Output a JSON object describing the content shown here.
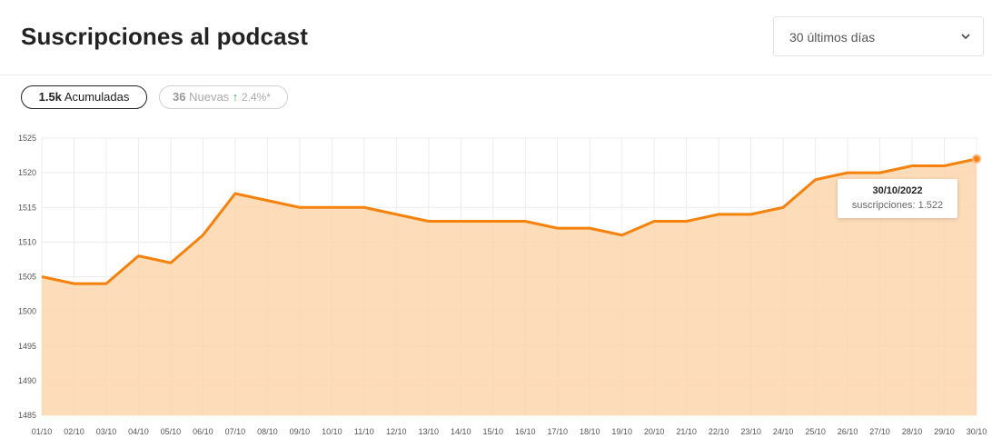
{
  "header": {
    "title": "Suscripciones al podcast",
    "range_select": {
      "value": "30 últimos días",
      "icon": "chevron-down-icon"
    }
  },
  "pills": {
    "acumuladas": {
      "value": "1.5k",
      "label": "Acumuladas"
    },
    "nuevas": {
      "value": "36",
      "label": "Nuevas",
      "change": "2.4%*",
      "trend_icon": "arrow-up-icon"
    }
  },
  "tooltip": {
    "date": "30/10/2022",
    "text": "suscripciones: 1.522"
  },
  "colors": {
    "line": "#f5820d",
    "fill": "#fdd6ad",
    "accent_up": "#3aa96b"
  },
  "chart_data": {
    "type": "area",
    "x": [
      "01/10",
      "02/10",
      "03/10",
      "04/10",
      "05/10",
      "06/10",
      "07/10",
      "08/10",
      "09/10",
      "10/10",
      "11/10",
      "12/10",
      "13/10",
      "14/10",
      "15/10",
      "16/10",
      "17/10",
      "18/10",
      "19/10",
      "20/10",
      "21/10",
      "22/10",
      "23/10",
      "24/10",
      "25/10",
      "26/10",
      "27/10",
      "28/10",
      "29/10",
      "30/10"
    ],
    "series": [
      {
        "values": [
          1505,
          1504,
          1504,
          1508,
          1507,
          1511,
          1517,
          1516,
          1515,
          1515,
          1515,
          1514,
          1513,
          1513,
          1513,
          1513,
          1512,
          1512,
          1511,
          1513,
          1513,
          1514,
          1514,
          1515,
          1519,
          1520,
          1520,
          1521,
          1521,
          1522
        ]
      }
    ],
    "ylim": [
      1485,
      1525
    ],
    "yticks": [
      1485,
      1490,
      1495,
      1500,
      1505,
      1510,
      1515,
      1520,
      1525
    ],
    "xlabel": "",
    "ylabel": "",
    "grid": true
  }
}
